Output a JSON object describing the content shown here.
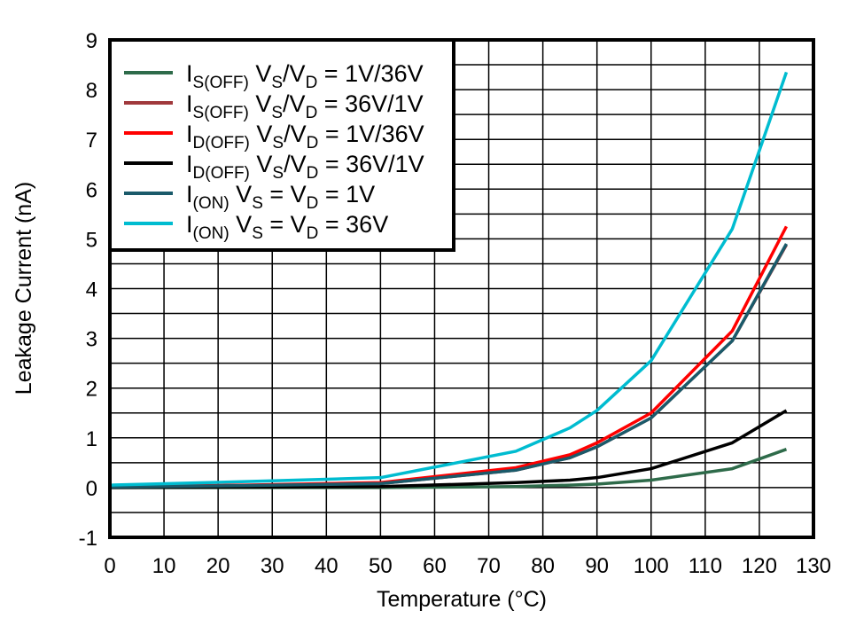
{
  "chart_data": {
    "type": "line",
    "title": "",
    "xlabel": "Temperature (°C)",
    "ylabel": "Leakage Current (nA)",
    "xlim": [
      0,
      130
    ],
    "ylim": [
      -1,
      9
    ],
    "xticks": [
      0,
      10,
      20,
      30,
      40,
      50,
      60,
      70,
      80,
      90,
      100,
      110,
      120,
      130
    ],
    "yticks": [
      -1,
      0,
      1,
      2,
      3,
      4,
      5,
      6,
      7,
      8,
      9
    ],
    "grid": true,
    "legend_placement": "top-left",
    "x": [
      0,
      25,
      50,
      75,
      85,
      90,
      100,
      115,
      125
    ],
    "series": [
      {
        "name": "IS(OFF) VS/VD = 1V/36V",
        "label_parts": [
          [
            "I",
            ""
          ],
          [
            "S(OFF)",
            "sub"
          ],
          [
            " V",
            ""
          ],
          [
            "S",
            "sub"
          ],
          [
            "/V",
            ""
          ],
          [
            "D",
            "sub"
          ],
          [
            " = 1V/36V",
            ""
          ]
        ],
        "color": "#2e6b4a",
        "values": [
          0,
          0,
          0,
          0.02,
          0.05,
          0.07,
          0.15,
          0.38,
          0.77
        ]
      },
      {
        "name": "IS(OFF) VS/VD = 36V/1V",
        "label_parts": [
          [
            "I",
            ""
          ],
          [
            "S(OFF)",
            "sub"
          ],
          [
            " V",
            ""
          ],
          [
            "S",
            "sub"
          ],
          [
            "/V",
            ""
          ],
          [
            "D",
            "sub"
          ],
          [
            " = 36V/1V",
            ""
          ]
        ],
        "color": "#a0393c",
        "values": [
          0.01,
          0.04,
          0.08,
          0.35,
          0.6,
          0.82,
          1.4,
          2.95,
          4.88
        ]
      },
      {
        "name": "ID(OFF) VS/VD = 1V/36V",
        "label_parts": [
          [
            "I",
            ""
          ],
          [
            "D(OFF)",
            "sub"
          ],
          [
            " V",
            ""
          ],
          [
            "S",
            "sub"
          ],
          [
            "/V",
            ""
          ],
          [
            "D",
            "sub"
          ],
          [
            " = 1V/36V",
            ""
          ]
        ],
        "color": "#ff0000",
        "values": [
          0.02,
          0.05,
          0.1,
          0.4,
          0.66,
          0.9,
          1.5,
          3.15,
          5.25
        ]
      },
      {
        "name": "ID(OFF) VS/VD = 36V/1V",
        "label_parts": [
          [
            "I",
            ""
          ],
          [
            "D(OFF)",
            "sub"
          ],
          [
            " V",
            ""
          ],
          [
            "S",
            "sub"
          ],
          [
            "/V",
            ""
          ],
          [
            "D",
            "sub"
          ],
          [
            " = 36V/1V",
            ""
          ]
        ],
        "color": "#000000",
        "values": [
          0,
          0.01,
          0.02,
          0.1,
          0.15,
          0.2,
          0.38,
          0.9,
          1.55
        ]
      },
      {
        "name": "I(ON) VS = VD = 1V",
        "label_parts": [
          [
            "I",
            ""
          ],
          [
            "(ON)",
            "sub"
          ],
          [
            " V",
            ""
          ],
          [
            "S",
            "sub"
          ],
          [
            " = V",
            ""
          ],
          [
            "D",
            "sub"
          ],
          [
            " = 1V",
            ""
          ]
        ],
        "color": "#1a5a6a",
        "values": [
          0.01,
          0.04,
          0.08,
          0.35,
          0.6,
          0.82,
          1.4,
          2.95,
          4.9
        ]
      },
      {
        "name": "I(ON) VS = VD = 36V",
        "label_parts": [
          [
            "I",
            ""
          ],
          [
            "(ON)",
            "sub"
          ],
          [
            " V",
            ""
          ],
          [
            "S",
            "sub"
          ],
          [
            " = V",
            ""
          ],
          [
            "D",
            "sub"
          ],
          [
            " = 36V",
            ""
          ]
        ],
        "color": "#00bcd0",
        "values": [
          0.05,
          0.12,
          0.2,
          0.73,
          1.2,
          1.55,
          2.55,
          5.2,
          8.35
        ]
      }
    ]
  }
}
